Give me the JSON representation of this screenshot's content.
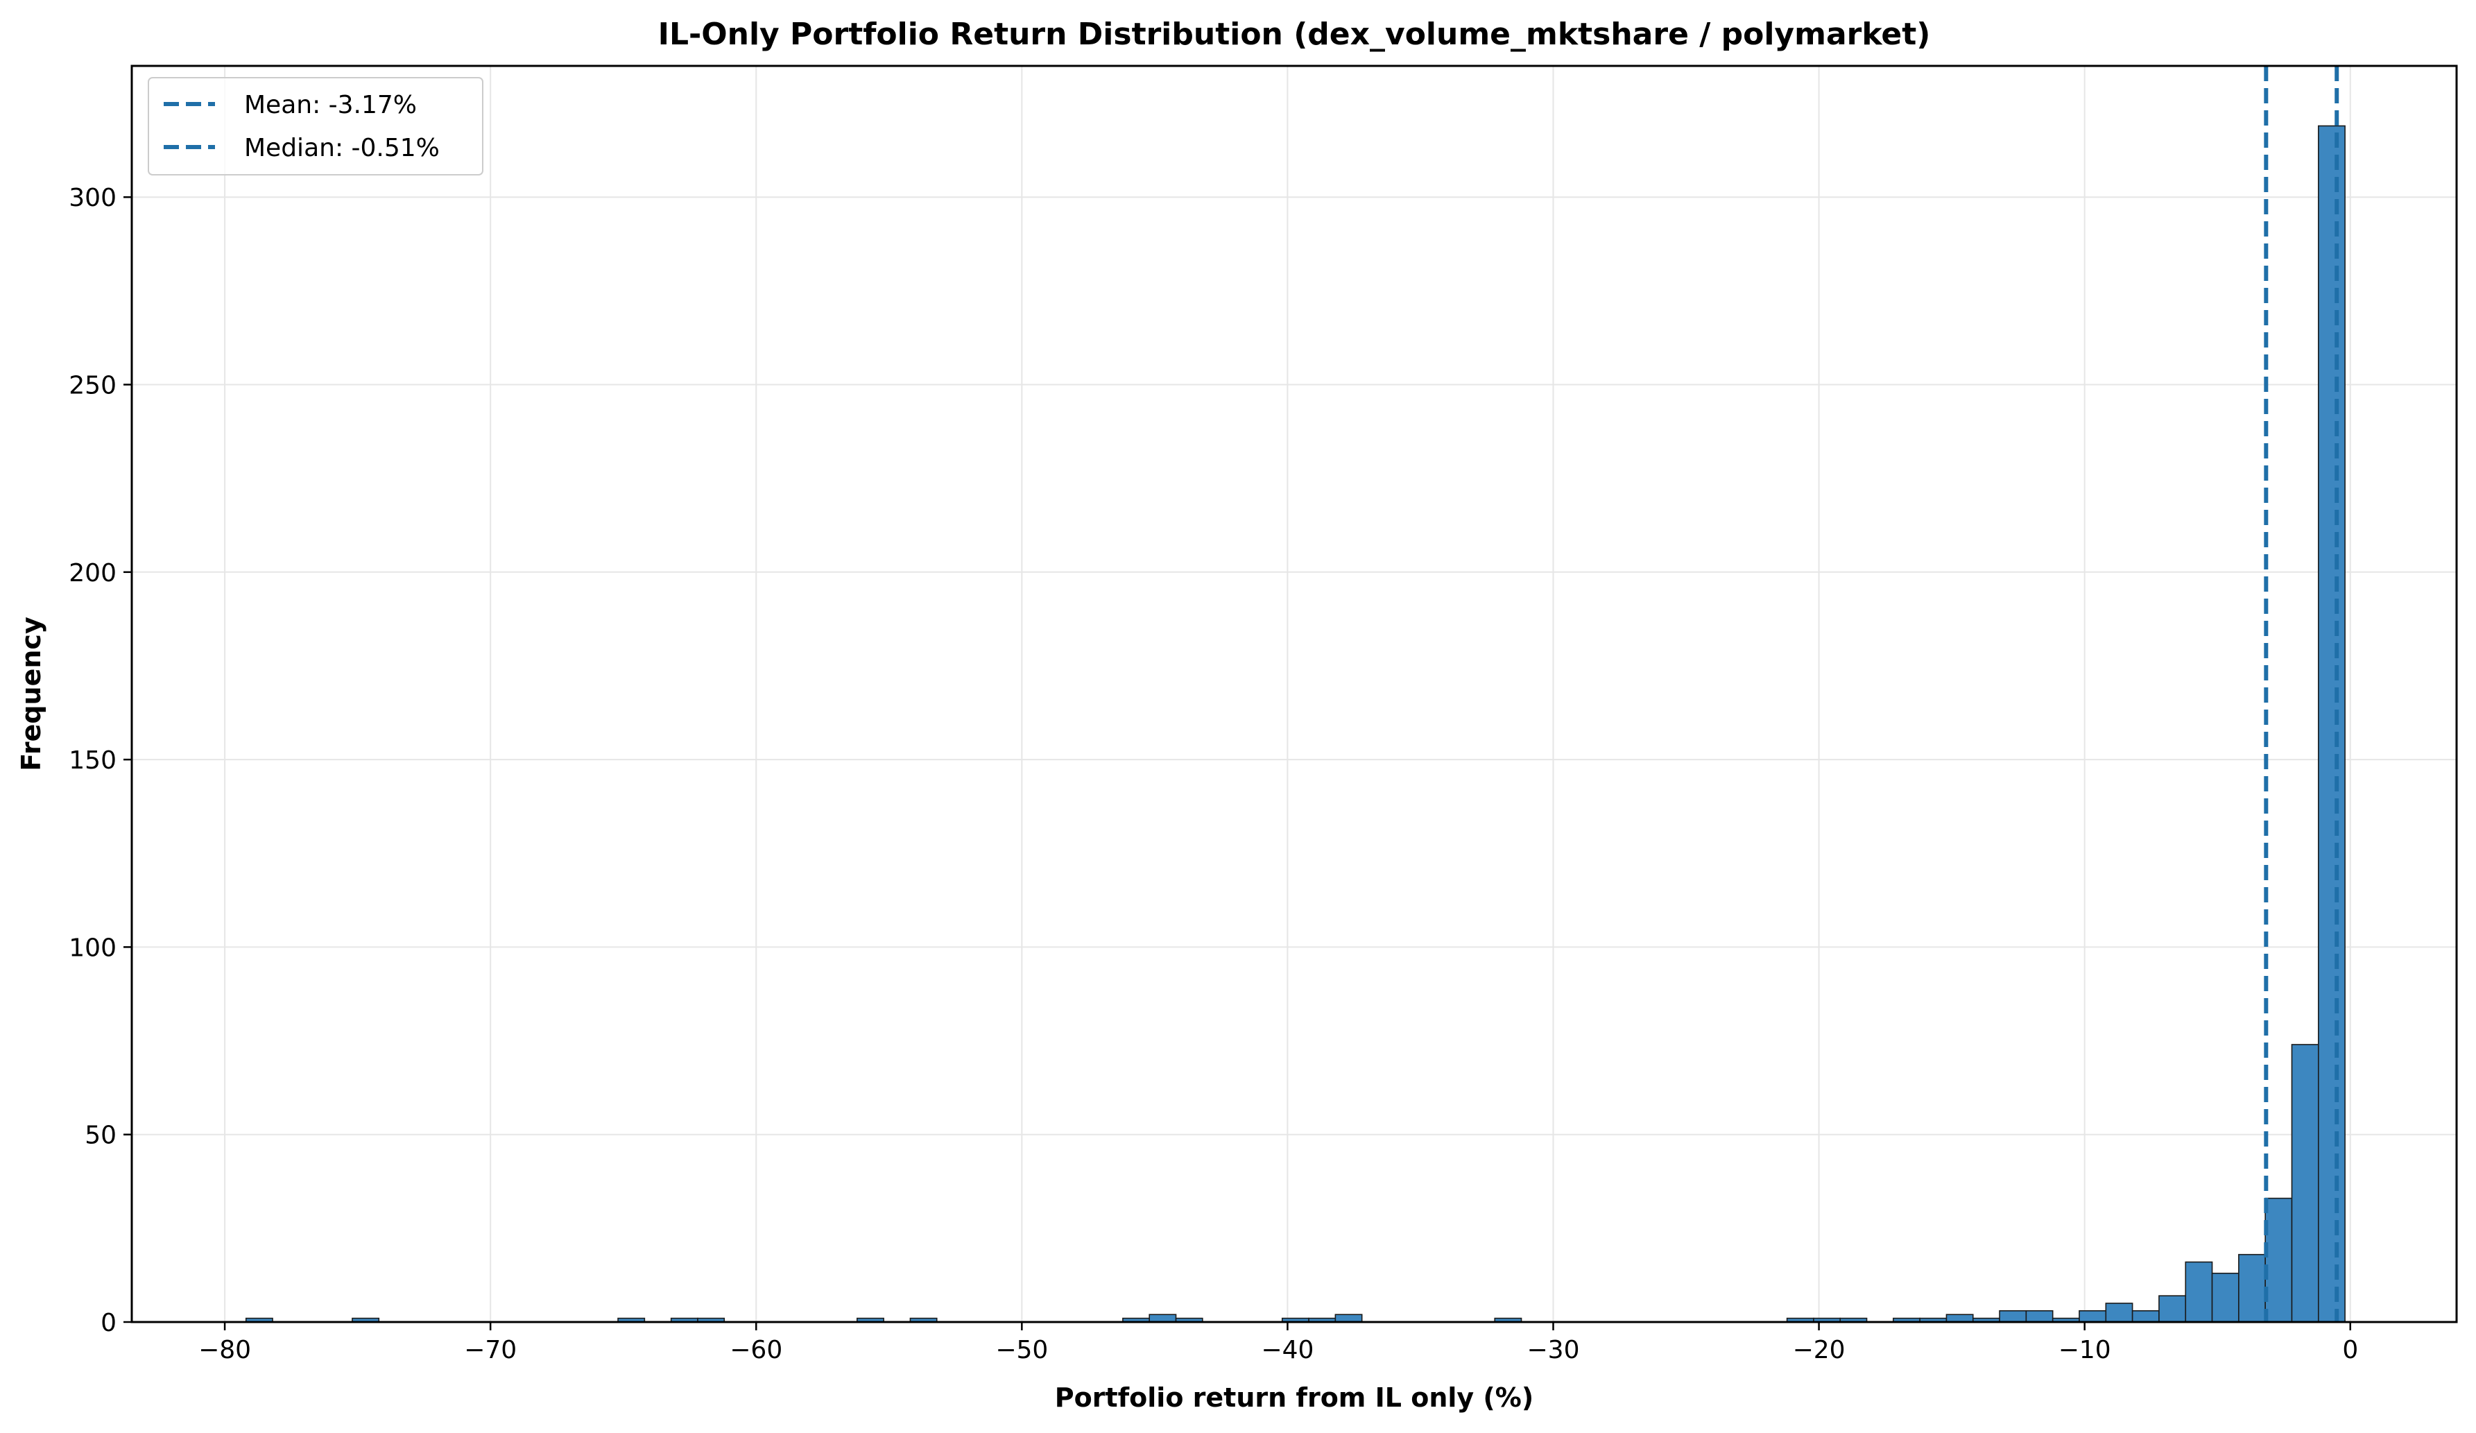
{
  "chart_data": {
    "type": "bar",
    "title": "IL-Only Portfolio Return Distribution (dex_volume_mktshare / polymarket)",
    "xlabel": "Portfolio return from IL only (%)",
    "ylabel": "Frequency",
    "xlim": [
      -83.5,
      4.0
    ],
    "ylim": [
      0,
      335
    ],
    "xticks": [
      -80,
      -70,
      -60,
      -50,
      -40,
      -30,
      -20,
      -10,
      0
    ],
    "xtick_labels": [
      "−80",
      "−70",
      "−60",
      "−50",
      "−40",
      "−30",
      "−20",
      "−10",
      "0"
    ],
    "yticks": [
      0,
      50,
      100,
      150,
      200,
      250,
      300
    ],
    "ytick_labels": [
      "0",
      "50",
      "100",
      "150",
      "200",
      "250",
      "300"
    ],
    "grid": true,
    "legend_position": "upper-left",
    "bar_color": "#3d87c0",
    "line_color": "#1f6fa8",
    "bins": [
      {
        "x0": -79.2,
        "x1": -78.2,
        "count": 1
      },
      {
        "x0": -75.2,
        "x1": -74.2,
        "count": 1
      },
      {
        "x0": -65.2,
        "x1": -64.2,
        "count": 1
      },
      {
        "x0": -63.2,
        "x1": -62.2,
        "count": 1
      },
      {
        "x0": -62.2,
        "x1": -61.2,
        "count": 1
      },
      {
        "x0": -56.2,
        "x1": -55.2,
        "count": 1
      },
      {
        "x0": -54.2,
        "x1": -53.2,
        "count": 1
      },
      {
        "x0": -46.2,
        "x1": -45.2,
        "count": 1
      },
      {
        "x0": -45.2,
        "x1": -44.2,
        "count": 2
      },
      {
        "x0": -44.2,
        "x1": -43.2,
        "count": 1
      },
      {
        "x0": -40.2,
        "x1": -39.2,
        "count": 1
      },
      {
        "x0": -39.2,
        "x1": -38.2,
        "count": 1
      },
      {
        "x0": -38.2,
        "x1": -37.2,
        "count": 2
      },
      {
        "x0": -32.2,
        "x1": -31.2,
        "count": 1
      },
      {
        "x0": -21.2,
        "x1": -20.2,
        "count": 1
      },
      {
        "x0": -20.2,
        "x1": -19.2,
        "count": 1
      },
      {
        "x0": -19.2,
        "x1": -18.2,
        "count": 1
      },
      {
        "x0": -17.2,
        "x1": -16.2,
        "count": 1
      },
      {
        "x0": -16.2,
        "x1": -15.2,
        "count": 1
      },
      {
        "x0": -15.2,
        "x1": -14.2,
        "count": 2
      },
      {
        "x0": -14.2,
        "x1": -13.2,
        "count": 1
      },
      {
        "x0": -13.2,
        "x1": -12.2,
        "count": 3
      },
      {
        "x0": -12.2,
        "x1": -11.2,
        "count": 3
      },
      {
        "x0": -11.2,
        "x1": -10.2,
        "count": 1
      },
      {
        "x0": -10.2,
        "x1": -9.2,
        "count": 3
      },
      {
        "x0": -9.2,
        "x1": -8.2,
        "count": 5
      },
      {
        "x0": -8.2,
        "x1": -7.2,
        "count": 3
      },
      {
        "x0": -7.2,
        "x1": -6.2,
        "count": 7
      },
      {
        "x0": -6.2,
        "x1": -5.2,
        "count": 16
      },
      {
        "x0": -5.2,
        "x1": -4.2,
        "count": 13
      },
      {
        "x0": -4.2,
        "x1": -3.2,
        "count": 18
      },
      {
        "x0": -3.2,
        "x1": -2.2,
        "count": 33
      },
      {
        "x0": -2.2,
        "x1": -1.2,
        "count": 74
      },
      {
        "x0": -1.2,
        "x1": -0.2,
        "count": 319
      }
    ],
    "reference_lines": [
      {
        "label": "Mean: -3.17%",
        "x": -3.17
      },
      {
        "label": "Median: -0.51%",
        "x": -0.51
      }
    ]
  }
}
